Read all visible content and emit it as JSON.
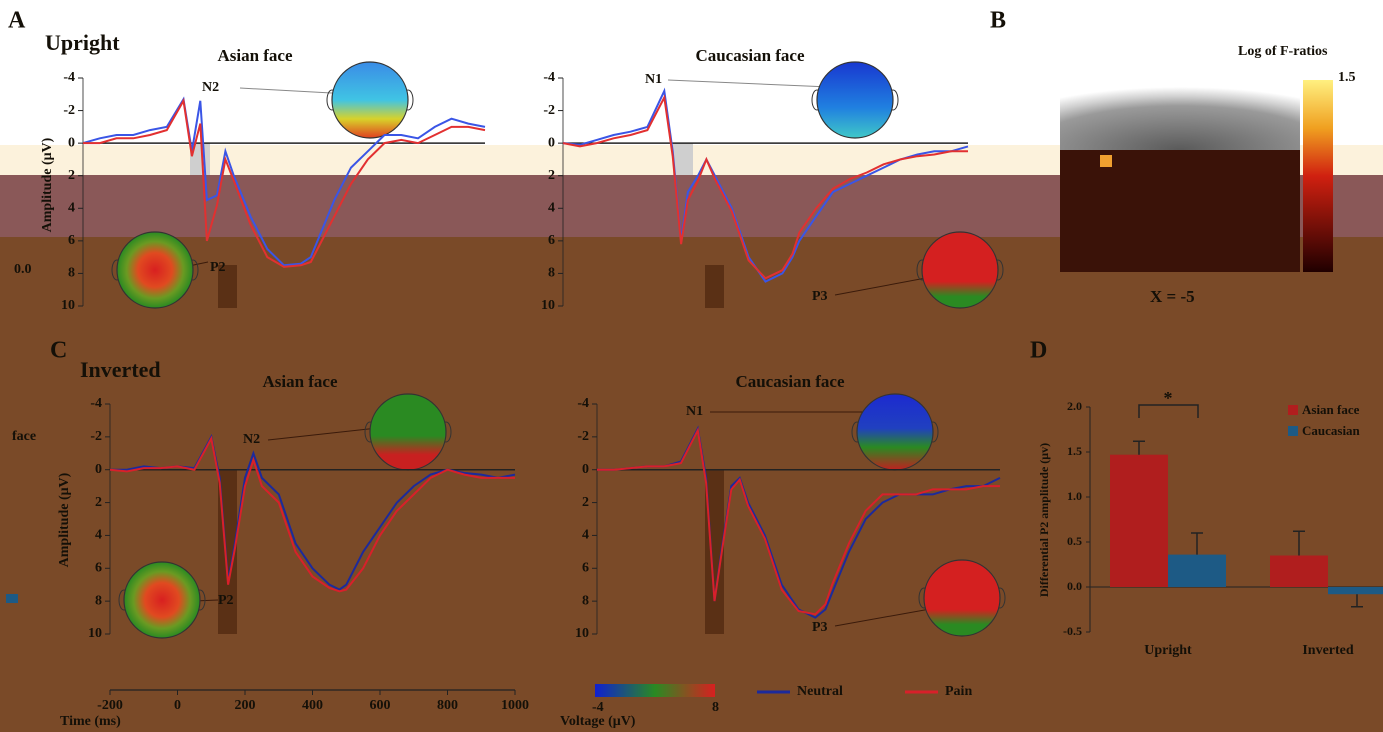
{
  "panels": [
    "A",
    "B",
    "C",
    "D"
  ],
  "rows": [
    "Upright",
    "Inverted"
  ],
  "fragments": [
    "0.0",
    "face"
  ],
  "panel_b": {
    "colorbar_label": "Log of F-ratios",
    "colorbar_max": "1.5",
    "slice": "X = -5"
  },
  "topomap_colorbar": {
    "label": "Voltage (μV)",
    "ticks": [
      -4,
      8
    ]
  },
  "chart_data": [
    {
      "type": "line",
      "title": "Asian face",
      "y_label": "Amplitude (μV)",
      "x": [
        -200,
        -150,
        -100,
        -50,
        0,
        50,
        100,
        125,
        150,
        170,
        200,
        225,
        250,
        300,
        350,
        400,
        450,
        480,
        500,
        550,
        600,
        650,
        700,
        750,
        800,
        850,
        900,
        950,
        1000
      ],
      "xlim": [
        -200,
        1000
      ],
      "ylim": [
        -4,
        10
      ],
      "yticks": [
        -4,
        -2,
        0,
        2,
        4,
        6,
        8,
        10
      ],
      "series": [
        {
          "color": "#3a55e6",
          "values": [
            0,
            -0.3,
            -0.5,
            -0.5,
            -0.8,
            -1.0,
            -2.7,
            0.5,
            -2.6,
            3.5,
            3.2,
            0.5,
            2.0,
            4.5,
            6.5,
            7.5,
            7.4,
            7.0,
            6.0,
            3.5,
            1.5,
            0.5,
            -0.5,
            -0.5,
            -0.3,
            -1.0,
            -1.5,
            -1.2,
            -1.0
          ]
        },
        {
          "color": "#e23030",
          "values": [
            0,
            0,
            -0.3,
            -0.3,
            -0.5,
            -0.8,
            -2.6,
            0.8,
            -1.2,
            6.0,
            3.8,
            1.0,
            2.3,
            5.0,
            7.0,
            7.6,
            7.5,
            7.3,
            6.5,
            4.5,
            2.5,
            1.0,
            0,
            -0.2,
            0,
            -0.5,
            -1.0,
            -1.0,
            -0.8
          ]
        }
      ],
      "annotations": [
        "N2",
        "P2"
      ]
    },
    {
      "type": "line",
      "title": "Caucasian face",
      "x": [
        -200,
        -150,
        -100,
        -50,
        0,
        50,
        100,
        125,
        150,
        170,
        200,
        225,
        250,
        300,
        350,
        400,
        450,
        480,
        500,
        550,
        600,
        650,
        700,
        750,
        800,
        850,
        900,
        950,
        1000
      ],
      "xlim": [
        -200,
        1000
      ],
      "ylim": [
        -4,
        10
      ],
      "yticks": [
        -4,
        -2,
        0,
        2,
        4,
        6,
        8,
        10
      ],
      "series": [
        {
          "color": "#3a55e6",
          "values": [
            0,
            0.1,
            -0.2,
            -0.5,
            -0.7,
            -1.0,
            -3.2,
            0.5,
            6.0,
            3.0,
            2.0,
            1.0,
            2.0,
            4.0,
            7.0,
            8.5,
            8.0,
            7.0,
            6.0,
            4.5,
            3.0,
            2.5,
            2.0,
            1.5,
            1.0,
            0.7,
            0.5,
            0.5,
            0.2
          ]
        },
        {
          "color": "#e23030",
          "values": [
            0,
            0.2,
            0,
            -0.3,
            -0.5,
            -0.8,
            -2.8,
            0.8,
            6.2,
            3.5,
            2.3,
            1.0,
            2.2,
            4.2,
            7.2,
            8.3,
            7.8,
            6.8,
            5.5,
            4.0,
            2.8,
            2.2,
            1.8,
            1.3,
            1.0,
            0.8,
            0.7,
            0.5,
            0.5
          ]
        }
      ],
      "annotations": [
        "N1",
        "P3"
      ]
    },
    {
      "type": "line",
      "title": "Asian face",
      "y_label": "Amplitude (μV)",
      "x_label": "Time (ms)",
      "x": [
        -200,
        -150,
        -100,
        -50,
        0,
        50,
        100,
        125,
        150,
        170,
        200,
        225,
        250,
        300,
        350,
        400,
        450,
        480,
        500,
        550,
        600,
        650,
        700,
        750,
        800,
        850,
        900,
        950,
        1000
      ],
      "xlim": [
        -200,
        1000
      ],
      "xticks": [
        -200,
        0,
        200,
        400,
        600,
        800,
        1000
      ],
      "ylim": [
        -4,
        10
      ],
      "yticks": [
        -4,
        -2,
        0,
        2,
        4,
        6,
        8,
        10
      ],
      "series": [
        {
          "name": "Neutral",
          "color": "#1c2a9c",
          "values": [
            0,
            0,
            -0.2,
            -0.1,
            -0.2,
            -0.1,
            -2.0,
            0.5,
            6.8,
            4.5,
            0.5,
            -1.0,
            0.5,
            1.5,
            4.5,
            6.0,
            7.0,
            7.3,
            7.0,
            5.0,
            3.5,
            2.0,
            1.0,
            0.3,
            0,
            0.2,
            0.3,
            0.5,
            0.3
          ]
        },
        {
          "name": "Pain",
          "color": "#d8202a",
          "values": [
            0,
            0.1,
            -0.1,
            -0.1,
            -0.2,
            0,
            -1.9,
            0.8,
            7.0,
            4.8,
            1.0,
            -0.6,
            1.0,
            2.0,
            5.0,
            6.5,
            7.2,
            7.4,
            7.3,
            6.0,
            4.0,
            2.5,
            1.5,
            0.5,
            0,
            0.3,
            0.5,
            0.5,
            0.5
          ]
        }
      ],
      "annotations": [
        "N2",
        "P2"
      ]
    },
    {
      "type": "line",
      "title": "Caucasian face",
      "x": [
        -200,
        -150,
        -100,
        -50,
        0,
        50,
        100,
        125,
        150,
        170,
        200,
        225,
        250,
        300,
        350,
        400,
        450,
        480,
        500,
        550,
        600,
        650,
        700,
        750,
        800,
        850,
        900,
        950,
        1000
      ],
      "xlim": [
        -200,
        1000
      ],
      "ylim": [
        -4,
        10
      ],
      "yticks": [
        -4,
        -2,
        0,
        2,
        4,
        6,
        8,
        10
      ],
      "series": [
        {
          "color": "#1c2a9c",
          "values": [
            0,
            0,
            -0.1,
            -0.2,
            -0.2,
            -0.5,
            -2.5,
            0.5,
            8.0,
            5.0,
            1.0,
            0.5,
            2.0,
            4.0,
            7.0,
            8.5,
            9.0,
            8.5,
            7.5,
            5.0,
            3.0,
            2.0,
            1.5,
            1.5,
            1.5,
            1.2,
            1.0,
            1.0,
            0.5
          ]
        },
        {
          "color": "#d8202a",
          "values": [
            0,
            0,
            -0.1,
            -0.2,
            -0.2,
            -0.4,
            -2.4,
            0.8,
            8.0,
            5.2,
            1.2,
            0.6,
            2.2,
            4.2,
            7.3,
            8.6,
            8.8,
            8.2,
            7.0,
            4.5,
            2.5,
            1.5,
            1.5,
            1.5,
            1.2,
            1.2,
            1.2,
            1.0,
            1.0
          ]
        }
      ],
      "annotations": [
        "N1",
        "P3"
      ]
    },
    {
      "type": "bar",
      "y_label": "Differential P2 amplitude (μv)",
      "categories": [
        "Upright",
        "Inverted"
      ],
      "series": [
        {
          "name": "Asian face",
          "color": "#b01e1e",
          "values": [
            1.47,
            0.35
          ],
          "errors": [
            0.15,
            0.27
          ]
        },
        {
          "name": "Caucasian",
          "color": "#1d5a85",
          "values": [
            0.36,
            -0.08
          ],
          "errors": [
            0.24,
            0.14
          ]
        }
      ],
      "ylim": [
        -0.5,
        2.0
      ],
      "yticks": [
        -0.5,
        {
          "value": 0,
          "label": "0.0"
        },
        0.5,
        {
          "value": 1,
          "label": "1.0"
        },
        1.5,
        {
          "value": 2,
          "label": "2.0"
        }
      ],
      "annotations": [
        "*"
      ]
    }
  ]
}
